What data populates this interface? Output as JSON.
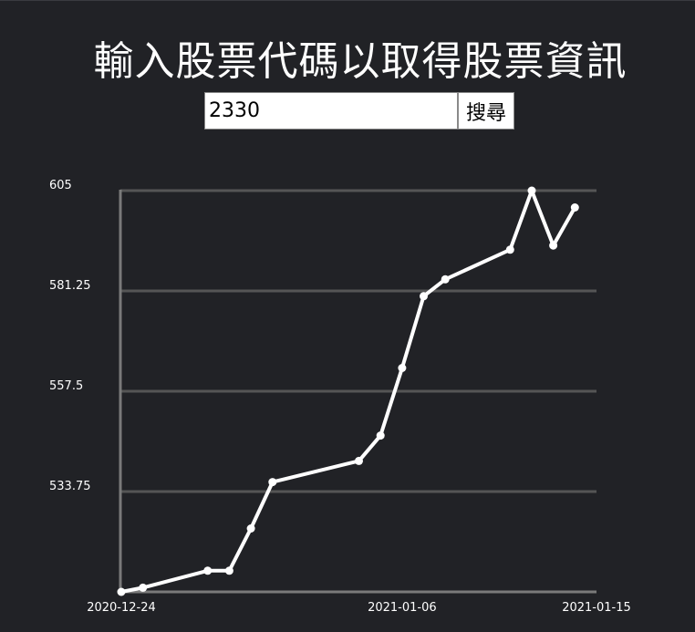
{
  "header": {
    "title": "輸入股票代碼以取得股票資訊"
  },
  "search": {
    "value": "2330",
    "placeholder": "",
    "button_label": "搜尋"
  },
  "colors": {
    "background": "#212226",
    "line": "#ffffff",
    "grid": "#555555",
    "axis": "#7a7a7a"
  },
  "chart_data": {
    "type": "line",
    "title": "",
    "xlabel": "",
    "ylabel": "",
    "x": [
      "2020-12-24",
      "2020-12-25",
      "2020-12-28",
      "2020-12-29",
      "2020-12-30",
      "2020-12-31",
      "2021-01-04",
      "2021-01-05",
      "2021-01-06",
      "2021-01-07",
      "2021-01-08",
      "2021-01-11",
      "2021-01-12",
      "2021-01-13",
      "2021-01-14"
    ],
    "values": [
      510,
      511,
      515,
      515,
      525,
      536,
      541,
      547,
      563,
      580,
      584,
      591,
      605,
      592,
      601
    ],
    "ylim": [
      510,
      605
    ],
    "yticks": [
      605,
      581.25,
      557.5,
      533.75
    ],
    "ytick_labels": [
      "605",
      "581.25",
      "557.5",
      "533.75"
    ],
    "xtick_labels": [
      "2020-12-24",
      "2021-01-06",
      "2021-01-15"
    ],
    "xtick_dates": [
      "2020-12-24",
      "2021-01-06",
      "2021-01-15"
    ],
    "grid": true,
    "legend": "none"
  }
}
